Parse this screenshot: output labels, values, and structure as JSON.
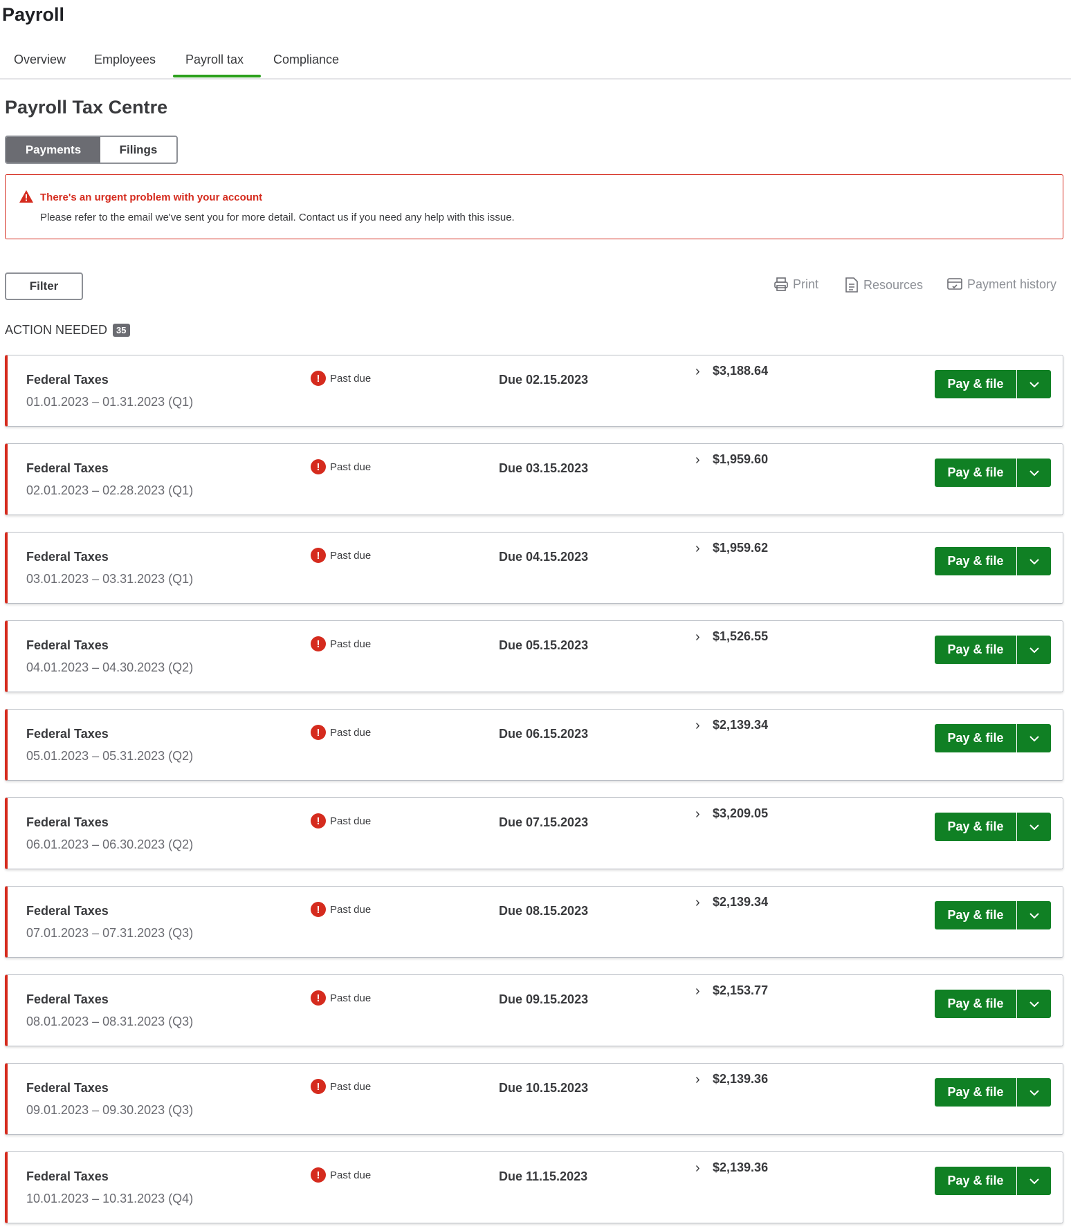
{
  "app": {
    "title": "Payroll"
  },
  "tabs": [
    {
      "label": "Overview"
    },
    {
      "label": "Employees"
    },
    {
      "label": "Payroll tax",
      "active": true
    },
    {
      "label": "Compliance"
    }
  ],
  "page": {
    "title": "Payroll Tax Centre"
  },
  "segment": {
    "payments": "Payments",
    "filings": "Filings",
    "selected": "Payments"
  },
  "alert": {
    "title": "There's an urgent problem with your account",
    "body": "Please refer to the email we've sent you for more detail. Contact us if you need any help with this issue.",
    "icon": "warning-icon"
  },
  "toolbar": {
    "filter": "Filter",
    "print": "Print",
    "resources": "Resources",
    "payment_history": "Payment history"
  },
  "section": {
    "label": "ACTION NEEDED",
    "count": "35"
  },
  "colors": {
    "accent": "#2ca01c",
    "button": "#108024",
    "danger": "#d52b1e"
  },
  "rows": [
    {
      "name": "Federal Taxes",
      "period": "01.01.2023 – 01.31.2023 (Q1)",
      "status": "Past due",
      "due": "Due 02.15.2023",
      "amount": "$3,188.64",
      "action": "Pay & file"
    },
    {
      "name": "Federal Taxes",
      "period": "02.01.2023 – 02.28.2023 (Q1)",
      "status": "Past due",
      "due": "Due 03.15.2023",
      "amount": "$1,959.60",
      "action": "Pay & file"
    },
    {
      "name": "Federal Taxes",
      "period": "03.01.2023 – 03.31.2023 (Q1)",
      "status": "Past due",
      "due": "Due 04.15.2023",
      "amount": "$1,959.62",
      "action": "Pay & file"
    },
    {
      "name": "Federal Taxes",
      "period": "04.01.2023 – 04.30.2023 (Q2)",
      "status": "Past due",
      "due": "Due 05.15.2023",
      "amount": "$1,526.55",
      "action": "Pay & file"
    },
    {
      "name": "Federal Taxes",
      "period": "05.01.2023 – 05.31.2023 (Q2)",
      "status": "Past due",
      "due": "Due 06.15.2023",
      "amount": "$2,139.34",
      "action": "Pay & file"
    },
    {
      "name": "Federal Taxes",
      "period": "06.01.2023 – 06.30.2023 (Q2)",
      "status": "Past due",
      "due": "Due 07.15.2023",
      "amount": "$3,209.05",
      "action": "Pay & file"
    },
    {
      "name": "Federal Taxes",
      "period": "07.01.2023 – 07.31.2023 (Q3)",
      "status": "Past due",
      "due": "Due 08.15.2023",
      "amount": "$2,139.34",
      "action": "Pay & file"
    },
    {
      "name": "Federal Taxes",
      "period": "08.01.2023 – 08.31.2023 (Q3)",
      "status": "Past due",
      "due": "Due 09.15.2023",
      "amount": "$2,153.77",
      "action": "Pay & file"
    },
    {
      "name": "Federal Taxes",
      "period": "09.01.2023 – 09.30.2023 (Q3)",
      "status": "Past due",
      "due": "Due 10.15.2023",
      "amount": "$2,139.36",
      "action": "Pay & file"
    },
    {
      "name": "Federal Taxes",
      "period": "10.01.2023 – 10.31.2023 (Q4)",
      "status": "Past due",
      "due": "Due 11.15.2023",
      "amount": "$2,139.36",
      "action": "Pay & file"
    }
  ]
}
